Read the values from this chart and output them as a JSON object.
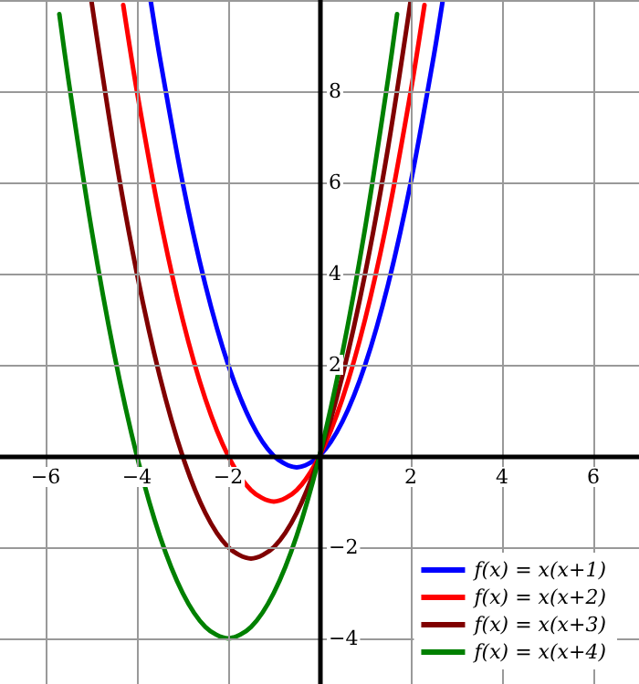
{
  "chart_data": {
    "type": "line",
    "xlim": [
      -7,
      7
    ],
    "ylim": [
      -5,
      10
    ],
    "xticks": [
      {
        "value": -6,
        "label": "−6"
      },
      {
        "value": -4,
        "label": "−4"
      },
      {
        "value": -2,
        "label": "−2"
      },
      2,
      4,
      6
    ],
    "yticks": [
      {
        "value": -4,
        "label": "−4"
      },
      {
        "value": -2,
        "label": "−2"
      },
      2,
      4,
      6,
      8,
      {
        "value": 10,
        "label": null
      }
    ],
    "grid": true,
    "legend": "bottom right",
    "marker": "none",
    "line_style": "solid",
    "series": [
      {
        "name": "f(x) = x(x+1)",
        "color": "#0000ff",
        "x": [
          -3.7,
          -3.5,
          -3,
          -2.5,
          -2,
          -1.5,
          -1,
          -0.5,
          0,
          0.5,
          1,
          1.5,
          2,
          2.5,
          2.7
        ],
        "values": [
          9.99,
          8.75,
          6,
          3.75,
          2,
          0.75,
          0,
          -0.25,
          0,
          0.75,
          2,
          3.75,
          6,
          8.75,
          9.99
        ]
      },
      {
        "name": "f(x) = x(x+2)",
        "color": "#ff0000",
        "x": [
          -4.3,
          -4,
          -3.5,
          -3,
          -2.5,
          -2,
          -1.5,
          -1,
          -0.5,
          0,
          0.5,
          1,
          1.5,
          2,
          2.3
        ],
        "values": [
          9.89,
          8,
          5.25,
          3,
          1.25,
          0,
          -0.75,
          -1,
          -0.75,
          0,
          1.25,
          3,
          5.25,
          8,
          9.89
        ]
      },
      {
        "name": "f(x) = x(x+3)",
        "color": "#800000",
        "x": [
          -5,
          -4.5,
          -4,
          -3.5,
          -3,
          -2.5,
          -2,
          -1.5,
          -1,
          -0.5,
          0,
          0.5,
          1,
          1.5,
          2
        ],
        "values": [
          10,
          6.75,
          4,
          1.75,
          0,
          -1.25,
          -2,
          -2.25,
          -2,
          -1.25,
          0,
          1.75,
          4,
          6.75,
          10
        ]
      },
      {
        "name": "f(x) = x(x+4)",
        "color": "#008000",
        "x": [
          -5.7,
          -5.5,
          -5,
          -4.5,
          -4,
          -3.5,
          -3,
          -2.5,
          -2,
          -1.5,
          -1,
          -0.5,
          0,
          0.5,
          1,
          1.5,
          1.7
        ],
        "values": [
          9.69,
          8.25,
          5,
          2.25,
          0,
          -1.75,
          -3,
          -3.75,
          -4,
          -3.75,
          -3,
          -1.75,
          0,
          2.25,
          5,
          8.25,
          9.69
        ]
      }
    ]
  }
}
